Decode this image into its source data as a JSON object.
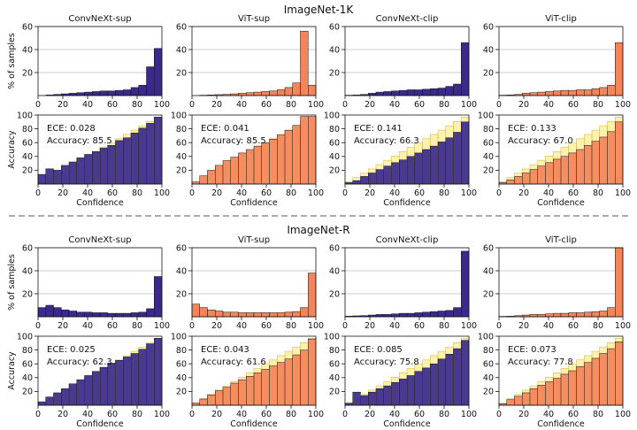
{
  "colors": {
    "navy": "#3b2a8c",
    "orange": "#f4845a",
    "gap": "#ffe866",
    "gap_edge": "#d4b84a",
    "grid": "#bbbbbb",
    "divider": "#777777"
  },
  "labels": {
    "ylabel_hist": "% of samples",
    "ylabel_rel": "Accuracy",
    "xlabel": "Confidence"
  },
  "chart_data": [
    {
      "title": "ImageNet-1K",
      "panels": [
        {
          "model": "ConvNeXt-sup",
          "color": "navy",
          "histogram": {
            "type": "bar",
            "title": "ConvNeXt-sup",
            "ylabel": "% of samples",
            "ylim": [
              0,
              60
            ],
            "yticks": [
              20,
              40,
              60
            ],
            "xticks": [
              0,
              20,
              40,
              60,
              80,
              100
            ],
            "values": [
              0.0,
              0.5,
              1,
              1.5,
              2,
              2.5,
              3,
              3.5,
              4,
              4,
              4.5,
              5,
              7,
              9,
              25,
              41
            ]
          },
          "reliability": {
            "type": "bar",
            "xlabel": "Confidence",
            "ylabel": "Accuracy",
            "ylim": [
              0,
              100
            ],
            "yticks": [
              20,
              40,
              60,
              80,
              100
            ],
            "xticks": [
              0,
              20,
              40,
              60,
              80,
              100
            ],
            "ece": "ECE: 0.028",
            "accuracy": "Accuracy: 85.5",
            "values": [
              14,
              22,
              20,
              27,
              32,
              38,
              43,
              47,
              52,
              56,
              63,
              67,
              74,
              81,
              88,
              97
            ]
          }
        },
        {
          "model": "ViT-sup",
          "color": "orange",
          "histogram": {
            "type": "bar",
            "title": "ViT-sup",
            "ylabel": "% of samples",
            "ylim": [
              0,
              60
            ],
            "yticks": [
              20,
              40,
              60
            ],
            "xticks": [
              0,
              20,
              40,
              60,
              80,
              100
            ],
            "values": [
              0.0,
              0.3,
              0.5,
              0.8,
              1,
              1.5,
              2,
              2.5,
              3,
              3.5,
              4,
              5,
              7,
              11,
              56,
              9
            ]
          },
          "reliability": {
            "type": "bar",
            "xlabel": "Confidence",
            "ylabel": "Accuracy",
            "ylim": [
              0,
              100
            ],
            "yticks": [
              20,
              40,
              60,
              80,
              100
            ],
            "xticks": [
              0,
              20,
              40,
              60,
              80,
              100
            ],
            "ece": "ECE: 0.041",
            "accuracy": "Accuracy: 85.5",
            "values": [
              3,
              12,
              20,
              27,
              34,
              39,
              45,
              50,
              55,
              60,
              65,
              71,
              78,
              85,
              98,
              98
            ]
          }
        },
        {
          "model": "ConvNeXt-clip",
          "color": "navy",
          "histogram": {
            "type": "bar",
            "title": "ConvNeXt-clip",
            "ylabel": "% of samples",
            "ylim": [
              0,
              60
            ],
            "yticks": [
              20,
              40,
              60
            ],
            "xticks": [
              0,
              20,
              40,
              60,
              80,
              100
            ],
            "values": [
              0.3,
              0.5,
              1,
              2,
              3,
              3.5,
              4,
              4.5,
              5,
              5,
              5.5,
              6,
              6.5,
              8,
              10,
              46
            ]
          },
          "reliability": {
            "type": "bar",
            "xlabel": "Confidence",
            "ylabel": "Accuracy",
            "ylim": [
              0,
              100
            ],
            "yticks": [
              20,
              40,
              60,
              80,
              100
            ],
            "xticks": [
              0,
              20,
              40,
              60,
              80,
              100
            ],
            "ece": "ECE: 0.141",
            "accuracy": "Accuracy: 66.3",
            "values": [
              2,
              5,
              11,
              16,
              21,
              26,
              31,
              35,
              40,
              45,
              50,
              55,
              61,
              67,
              75,
              90
            ]
          }
        },
        {
          "model": "ViT-clip",
          "color": "orange",
          "histogram": {
            "type": "bar",
            "title": "ViT-clip",
            "ylabel": "% of samples",
            "ylim": [
              0,
              60
            ],
            "yticks": [
              20,
              40,
              60
            ],
            "xticks": [
              0,
              20,
              40,
              60,
              80,
              100
            ],
            "values": [
              0.3,
              0.5,
              1,
              2,
              2.5,
              3,
              3.5,
              4,
              4.5,
              4.5,
              5,
              5,
              6,
              7,
              9,
              46
            ]
          },
          "reliability": {
            "type": "bar",
            "xlabel": "Confidence",
            "ylabel": "Accuracy",
            "ylim": [
              0,
              100
            ],
            "yticks": [
              20,
              40,
              60,
              80,
              100
            ],
            "xticks": [
              0,
              20,
              40,
              60,
              80,
              100
            ],
            "ece": "ECE: 0.133",
            "accuracy": "Accuracy: 67.0",
            "values": [
              2,
              6,
              11,
              16,
              21,
              26,
              31,
              36,
              40,
              45,
              50,
              56,
              62,
              68,
              76,
              90
            ]
          }
        }
      ]
    },
    {
      "title": "ImageNet-R",
      "panels": [
        {
          "model": "ConvNeXt-sup",
          "color": "navy",
          "histogram": {
            "type": "bar",
            "title": "ConvNeXt-sup",
            "ylabel": "% of samples",
            "ylim": [
              0,
              60
            ],
            "yticks": [
              20,
              40,
              60
            ],
            "xticks": [
              0,
              20,
              40,
              60,
              80,
              100
            ],
            "values": [
              8,
              10,
              8,
              6,
              5,
              4,
              4,
              3.5,
              3.5,
              3,
              3,
              3,
              3.5,
              4,
              7,
              35
            ]
          },
          "reliability": {
            "type": "bar",
            "xlabel": "Confidence",
            "ylabel": "Accuracy",
            "ylim": [
              0,
              100
            ],
            "yticks": [
              20,
              40,
              60,
              80,
              100
            ],
            "xticks": [
              0,
              20,
              40,
              60,
              80,
              100
            ],
            "ece": "ECE: 0.025",
            "accuracy": "Accuracy: 62.3",
            "values": [
              5,
              12,
              18,
              24,
              31,
              37,
              43,
              49,
              55,
              61,
              65,
              70,
              75,
              81,
              89,
              97
            ]
          }
        },
        {
          "model": "ViT-sup",
          "color": "orange",
          "histogram": {
            "type": "bar",
            "title": "ViT-sup",
            "ylabel": "% of samples",
            "ylim": [
              0,
              60
            ],
            "yticks": [
              20,
              40,
              60
            ],
            "xticks": [
              0,
              20,
              40,
              60,
              80,
              100
            ],
            "values": [
              11,
              8,
              6,
              5,
              4,
              4,
              3.5,
              3.5,
              3.5,
              3.5,
              3.5,
              3.5,
              4,
              4.5,
              8,
              38
            ]
          },
          "reliability": {
            "type": "bar",
            "xlabel": "Confidence",
            "ylabel": "Accuracy",
            "ylim": [
              0,
              100
            ],
            "yticks": [
              20,
              40,
              60,
              80,
              100
            ],
            "xticks": [
              0,
              20,
              40,
              60,
              80,
              100
            ],
            "ece": "ECE: 0.043",
            "accuracy": "Accuracy: 61.6",
            "values": [
              3,
              9,
              15,
              21,
              26,
              32,
              37,
              42,
              47,
              52,
              57,
              62,
              67,
              73,
              80,
              96
            ]
          }
        },
        {
          "model": "ConvNeXt-clip",
          "color": "navy",
          "histogram": {
            "type": "bar",
            "title": "ConvNeXt-clip",
            "ylabel": "% of samples",
            "ylim": [
              0,
              60
            ],
            "yticks": [
              20,
              40,
              60
            ],
            "xticks": [
              0,
              20,
              40,
              60,
              80,
              100
            ],
            "values": [
              0.5,
              0.8,
              1,
              1.5,
              2,
              2,
              2.5,
              3,
              3,
              3.5,
              4,
              4.5,
              5,
              5.5,
              8,
              57
            ]
          },
          "reliability": {
            "type": "bar",
            "xlabel": "Confidence",
            "ylabel": "Accuracy",
            "ylim": [
              0,
              100
            ],
            "yticks": [
              20,
              40,
              60,
              80,
              100
            ],
            "xticks": [
              0,
              20,
              40,
              60,
              80,
              100
            ],
            "ece": "ECE: 0.085",
            "accuracy": "Accuracy: 75.8",
            "values": [
              3,
              19,
              14,
              19,
              24,
              28,
              33,
              38,
              43,
              49,
              54,
              60,
              67,
              74,
              82,
              94
            ]
          }
        },
        {
          "model": "ViT-clip",
          "color": "orange",
          "histogram": {
            "type": "bar",
            "title": "ViT-clip",
            "ylabel": "% of samples",
            "ylim": [
              0,
              60
            ],
            "yticks": [
              20,
              40,
              60
            ],
            "xticks": [
              0,
              20,
              40,
              60,
              80,
              100
            ],
            "values": [
              0.3,
              0.5,
              1,
              1.5,
              2,
              2,
              2.5,
              3,
              3,
              3.5,
              3.5,
              4,
              4.5,
              5,
              8,
              60
            ]
          },
          "reliability": {
            "type": "bar",
            "xlabel": "Confidence",
            "ylabel": "Accuracy",
            "ylim": [
              0,
              100
            ],
            "yticks": [
              20,
              40,
              60,
              80,
              100
            ],
            "xticks": [
              0,
              20,
              40,
              60,
              80,
              100
            ],
            "ece": "ECE: 0.073",
            "accuracy": "Accuracy: 77.8",
            "values": [
              2,
              8,
              13,
              18,
              24,
              29,
              34,
              39,
              45,
              50,
              56,
              62,
              68,
              75,
              82,
              92
            ]
          }
        }
      ]
    }
  ]
}
